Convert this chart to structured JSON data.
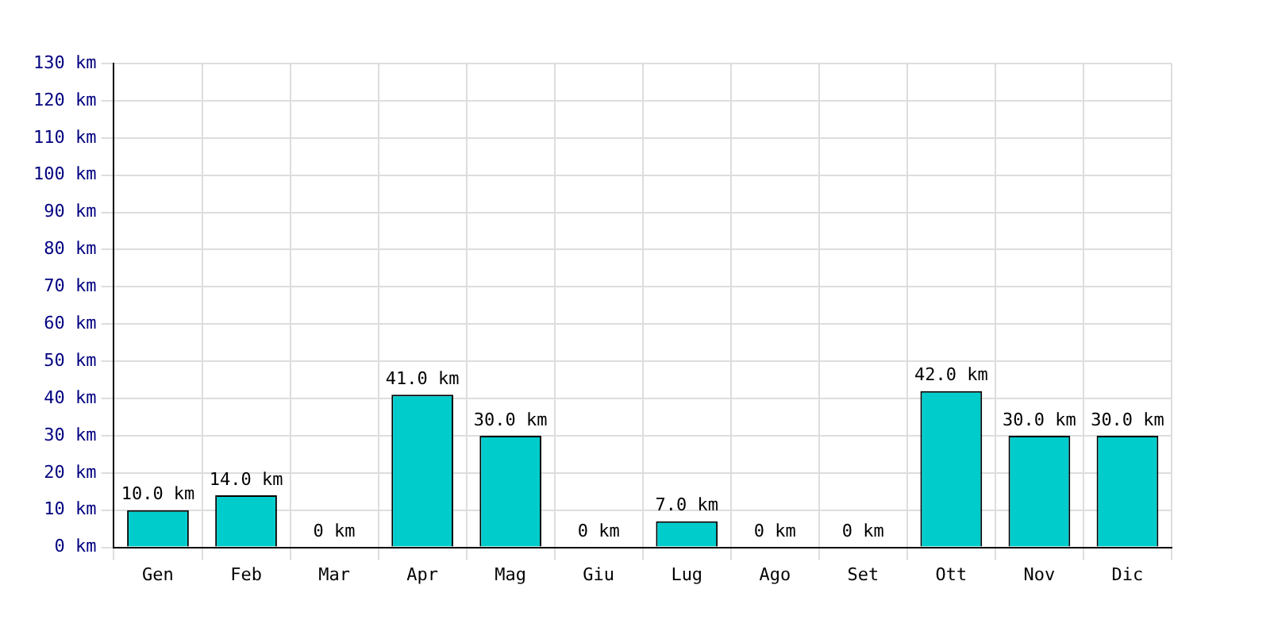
{
  "chart_data": {
    "type": "bar",
    "categories": [
      "Gen",
      "Feb",
      "Mar",
      "Apr",
      "Mag",
      "Giu",
      "Lug",
      "Ago",
      "Set",
      "Ott",
      "Nov",
      "Dic"
    ],
    "values": [
      10,
      14,
      0,
      41,
      30,
      0,
      7,
      0,
      0,
      42,
      30,
      30
    ],
    "value_labels": [
      "10.0 km",
      "14.0 km",
      "0 km",
      "41.0 km",
      "30.0 km",
      "0 km",
      "7.0 km",
      "0 km",
      "0 km",
      "42.0 km",
      "30.0 km",
      "30.0 km"
    ],
    "color": "#00cccc",
    "ylim": [
      0,
      130
    ],
    "yticks": [
      {
        "value": 0,
        "label": "0 km"
      },
      {
        "value": 10,
        "label": "10 km"
      },
      {
        "value": 20,
        "label": "20 km"
      },
      {
        "value": 30,
        "label": "30 km"
      },
      {
        "value": 40,
        "label": "40 km"
      },
      {
        "value": 50,
        "label": "50 km"
      },
      {
        "value": 60,
        "label": "60 km"
      },
      {
        "value": 70,
        "label": "70 km"
      },
      {
        "value": 80,
        "label": "80 km"
      },
      {
        "value": 90,
        "label": "90 km"
      },
      {
        "value": 100,
        "label": "100 km"
      },
      {
        "value": 110,
        "label": "110 km"
      },
      {
        "value": 120,
        "label": "120 km"
      },
      {
        "value": 130,
        "label": "130 km"
      }
    ],
    "grid": true
  }
}
